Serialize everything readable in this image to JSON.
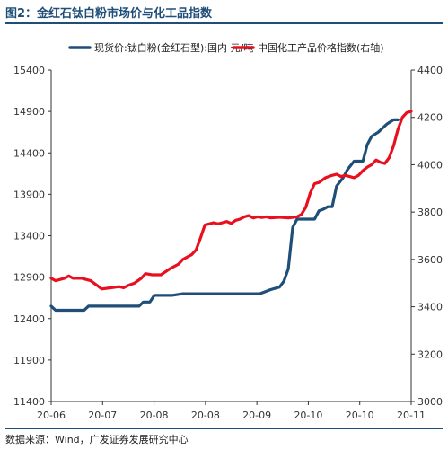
{
  "header": {
    "title": "图2：金红石钛白粉市场价与化工品指数"
  },
  "footer": {
    "source": "数据来源：Wind，广发证券发展研究中心"
  },
  "chart_data": {
    "type": "line",
    "x_tick_labels": [
      "20-06",
      "20-07",
      "20-08",
      "20-08",
      "20-09",
      "20-10",
      "20-10",
      "20-11"
    ],
    "y_left": {
      "ticks": [
        11400,
        11900,
        12400,
        12900,
        13400,
        13900,
        14400,
        14900,
        15400
      ],
      "range": [
        11400,
        15400
      ]
    },
    "y_right": {
      "ticks": [
        3000,
        3200,
        3400,
        3600,
        3800,
        4000,
        4200,
        4400
      ],
      "range": [
        3000,
        4400
      ]
    },
    "grid": false,
    "legend_position": "top",
    "series": [
      {
        "name": "现货价:钛白粉(金红石型):国内 元/吨",
        "axis": "left",
        "color": "#1f4e79",
        "points": [
          [
            0,
            12550
          ],
          [
            2,
            12500
          ],
          [
            15,
            12500
          ],
          [
            17,
            12550
          ],
          [
            40,
            12550
          ],
          [
            42,
            12600
          ],
          [
            45,
            12600
          ],
          [
            47,
            12680
          ],
          [
            55,
            12680
          ],
          [
            60,
            12700
          ],
          [
            95,
            12700
          ],
          [
            100,
            12750
          ],
          [
            104,
            12780
          ],
          [
            106,
            12850
          ],
          [
            108,
            13000
          ],
          [
            110,
            13500
          ],
          [
            112,
            13600
          ],
          [
            120,
            13600
          ],
          [
            122,
            13700
          ],
          [
            124,
            13720
          ],
          [
            126,
            13750
          ],
          [
            128,
            13750
          ],
          [
            130,
            14000
          ],
          [
            133,
            14100
          ],
          [
            135,
            14200
          ],
          [
            138,
            14300
          ],
          [
            142,
            14300
          ],
          [
            144,
            14500
          ],
          [
            146,
            14600
          ],
          [
            149,
            14650
          ],
          [
            151,
            14700
          ],
          [
            153,
            14750
          ],
          [
            156,
            14800
          ],
          [
            158,
            14800
          ]
        ]
      },
      {
        "name": "中国化工产品价格指数(右轴)",
        "axis": "right",
        "color": "#e8101e",
        "points": [
          [
            0,
            3520
          ],
          [
            2,
            3510
          ],
          [
            6,
            3520
          ],
          [
            8,
            3530
          ],
          [
            10,
            3520
          ],
          [
            14,
            3520
          ],
          [
            18,
            3510
          ],
          [
            21,
            3490
          ],
          [
            23,
            3475
          ],
          [
            27,
            3480
          ],
          [
            31,
            3485
          ],
          [
            33,
            3480
          ],
          [
            35,
            3490
          ],
          [
            38,
            3500
          ],
          [
            41,
            3520
          ],
          [
            43,
            3540
          ],
          [
            46,
            3535
          ],
          [
            50,
            3535
          ],
          [
            54,
            3560
          ],
          [
            58,
            3580
          ],
          [
            60,
            3600
          ],
          [
            62,
            3610
          ],
          [
            64,
            3620
          ],
          [
            66,
            3640
          ],
          [
            68,
            3690
          ],
          [
            70,
            3745
          ],
          [
            72,
            3750
          ],
          [
            74,
            3755
          ],
          [
            76,
            3750
          ],
          [
            78,
            3755
          ],
          [
            80,
            3760
          ],
          [
            82,
            3752
          ],
          [
            84,
            3765
          ],
          [
            86,
            3770
          ],
          [
            88,
            3780
          ],
          [
            90,
            3785
          ],
          [
            92,
            3775
          ],
          [
            94,
            3780
          ],
          [
            96,
            3777
          ],
          [
            98,
            3780
          ],
          [
            100,
            3775
          ],
          [
            104,
            3778
          ],
          [
            108,
            3775
          ],
          [
            112,
            3780
          ],
          [
            114,
            3790
          ],
          [
            116,
            3820
          ],
          [
            118,
            3880
          ],
          [
            120,
            3920
          ],
          [
            122,
            3925
          ],
          [
            125,
            3945
          ],
          [
            128,
            3955
          ],
          [
            130,
            3960
          ],
          [
            132,
            3950
          ],
          [
            134,
            3955
          ],
          [
            136,
            3950
          ],
          [
            138,
            3945
          ],
          [
            140,
            3955
          ],
          [
            142,
            3975
          ],
          [
            144,
            3990
          ],
          [
            146,
            4000
          ],
          [
            148,
            4020
          ],
          [
            150,
            4010
          ],
          [
            152,
            4005
          ],
          [
            154,
            4030
          ],
          [
            156,
            4080
          ],
          [
            158,
            4150
          ],
          [
            160,
            4200
          ],
          [
            162,
            4220
          ],
          [
            164,
            4225
          ]
        ]
      }
    ]
  }
}
